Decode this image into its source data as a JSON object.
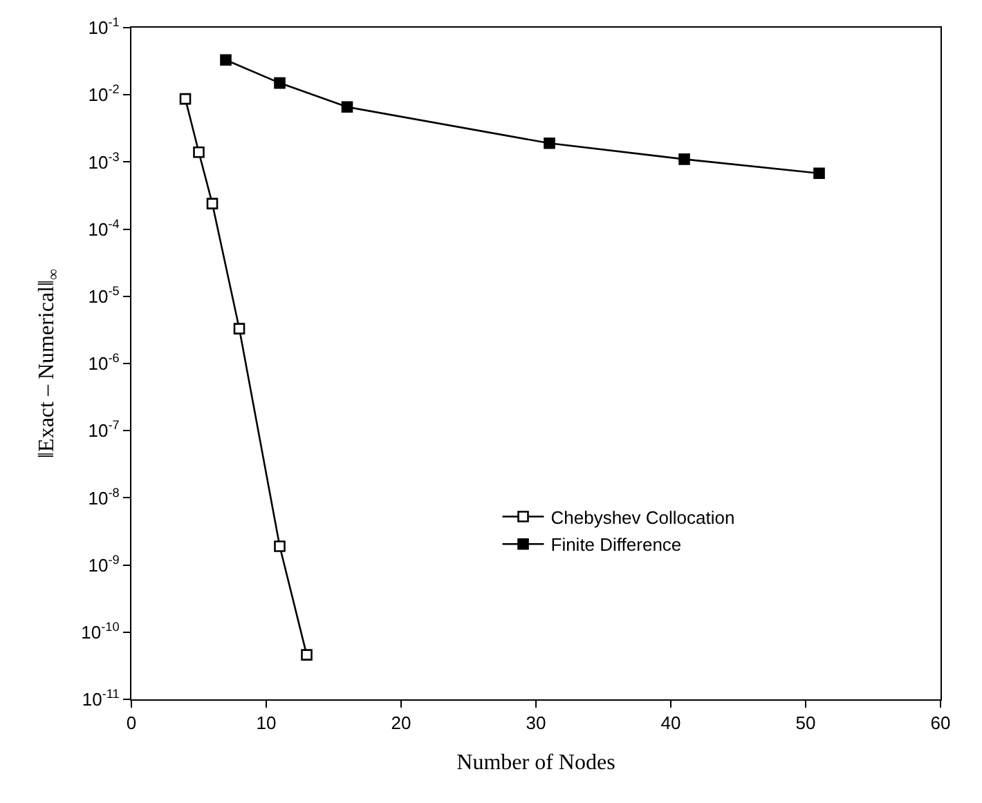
{
  "chart_data": {
    "type": "line",
    "xlabel": "Number of Nodes",
    "ylabel": "‖Exact – Numerical‖$_{∞}$",
    "log": "y",
    "legend": "bottom right",
    "marker": "square",
    "xlim": [
      0,
      60
    ],
    "xticks": [
      0,
      10,
      20,
      30,
      40,
      50,
      60
    ],
    "ylim": [
      1e-11,
      0.1
    ],
    "yticks": [
      {
        "value": 1e-11,
        "label": "10$^{-11}$"
      },
      {
        "value": 1e-10,
        "label": "10$^{-10}$"
      },
      {
        "value": 1e-09,
        "label": "10$^{-9}$"
      },
      {
        "value": 1e-08,
        "label": "10$^{-8}$"
      },
      {
        "value": 1e-07,
        "label": "10$^{-7}$"
      },
      {
        "value": 1e-06,
        "label": "10$^{-6}$"
      },
      {
        "value": 1e-05,
        "label": "10$^{-5}$"
      },
      {
        "value": 0.0001,
        "label": "10$^{-4}$"
      },
      {
        "value": 0.001,
        "label": "10$^{-3}$"
      },
      {
        "value": 0.01,
        "label": "10$^{-2}$"
      },
      {
        "value": 0.1,
        "label": "10$^{-1}$"
      }
    ],
    "series": [
      {
        "name": "Chebyshev Collocation",
        "color": "#000000",
        "marker": "square-open",
        "x": [
          4,
          5,
          6,
          8,
          11,
          13
        ],
        "values": [
          0.0087,
          0.0014,
          0.00024,
          3.3e-06,
          1.9e-09,
          4.6e-11
        ]
      },
      {
        "name": "Finite Difference",
        "color": "#000000",
        "x": [
          7,
          11,
          16,
          31,
          41,
          51
        ],
        "values": [
          0.033,
          0.015,
          0.0066,
          0.0019,
          0.0011,
          0.00068
        ]
      }
    ]
  }
}
